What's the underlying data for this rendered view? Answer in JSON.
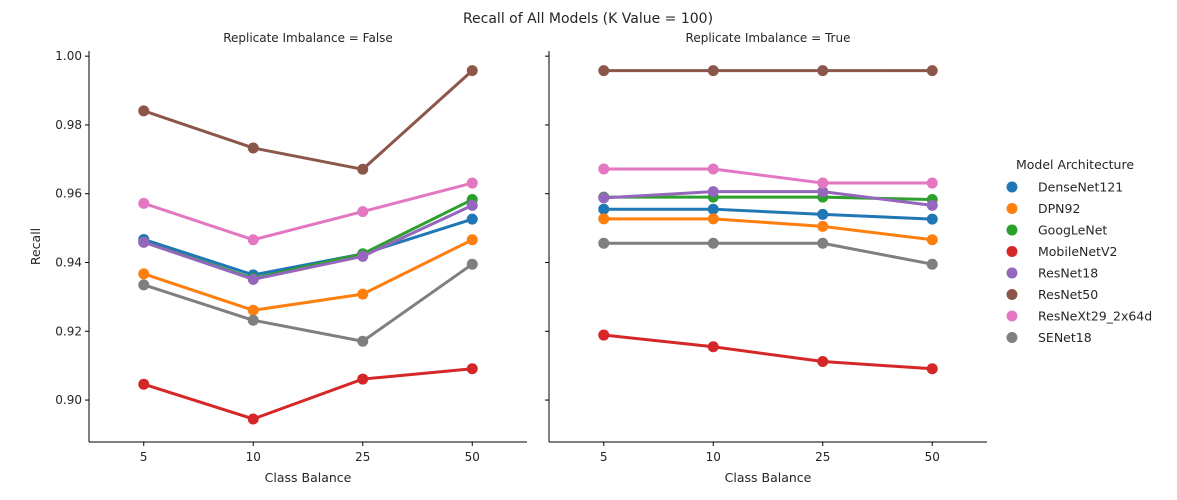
{
  "figure_title": "Recall of All Models (K Value = 100)",
  "legend_title": "Model Architecture",
  "chart_data": [
    {
      "type": "line",
      "title": "Replicate Imbalance = False",
      "xlabel": "Class Balance",
      "ylabel": "Recall",
      "categories": [
        "5",
        "10",
        "25",
        "50"
      ],
      "ylim": [
        0.8878,
        1.0015
      ],
      "yticks": [
        "0.90",
        "0.92",
        "0.94",
        "0.96",
        "0.98",
        "1.00"
      ],
      "grid": false,
      "series": [
        {
          "name": "DenseNet121",
          "color": "#1f77b4",
          "values": [
            0.9467,
            0.9364,
            0.9425,
            0.9526
          ]
        },
        {
          "name": "DPN92",
          "color": "#ff7f0e",
          "values": [
            0.9367,
            0.9261,
            0.9308,
            0.9466
          ]
        },
        {
          "name": "GoogLeNet",
          "color": "#2ca02c",
          "values": [
            0.9459,
            0.9354,
            0.9425,
            0.9583
          ]
        },
        {
          "name": "MobileNetV2",
          "color": "#d62728",
          "values": [
            0.9046,
            0.8945,
            0.9061,
            0.9091
          ]
        },
        {
          "name": "ResNet18",
          "color": "#9467bd",
          "values": [
            0.9459,
            0.9351,
            0.9418,
            0.9566
          ]
        },
        {
          "name": "ResNet50",
          "color": "#8c564b",
          "values": [
            0.9841,
            0.9733,
            0.9671,
            0.9958
          ]
        },
        {
          "name": "ResNeXt29_2x64d",
          "color": "#e377c2",
          "values": [
            0.9572,
            0.9466,
            0.9548,
            0.9631
          ]
        },
        {
          "name": "SENet18",
          "color": "#7f7f7f",
          "values": [
            0.9335,
            0.9232,
            0.9171,
            0.9395
          ]
        }
      ]
    },
    {
      "type": "line",
      "title": "Replicate Imbalance = True",
      "xlabel": "Class Balance",
      "ylabel": "",
      "categories": [
        "5",
        "10",
        "25",
        "50"
      ],
      "ylim": [
        0.8878,
        1.0015
      ],
      "yticks": [
        "0.90",
        "0.92",
        "0.94",
        "0.96",
        "0.98",
        "1.00"
      ],
      "grid": false,
      "series": [
        {
          "name": "DenseNet121",
          "color": "#1f77b4",
          "values": [
            0.9555,
            0.9555,
            0.954,
            0.9526
          ]
        },
        {
          "name": "DPN92",
          "color": "#ff7f0e",
          "values": [
            0.9527,
            0.9527,
            0.9505,
            0.9466
          ]
        },
        {
          "name": "GoogLeNet",
          "color": "#2ca02c",
          "values": [
            0.959,
            0.959,
            0.959,
            0.9583
          ]
        },
        {
          "name": "MobileNetV2",
          "color": "#d62728",
          "values": [
            0.9189,
            0.9155,
            0.9112,
            0.9091
          ]
        },
        {
          "name": "ResNet18",
          "color": "#9467bd",
          "values": [
            0.9588,
            0.9606,
            0.9606,
            0.9566
          ]
        },
        {
          "name": "ResNet50",
          "color": "#8c564b",
          "values": [
            0.9958,
            0.9958,
            0.9958,
            0.9958
          ]
        },
        {
          "name": "ResNeXt29_2x64d",
          "color": "#e377c2",
          "values": [
            0.9672,
            0.9672,
            0.9631,
            0.9631
          ]
        },
        {
          "name": "SENet18",
          "color": "#7f7f7f",
          "values": [
            0.9456,
            0.9456,
            0.9456,
            0.9395
          ]
        }
      ]
    }
  ]
}
